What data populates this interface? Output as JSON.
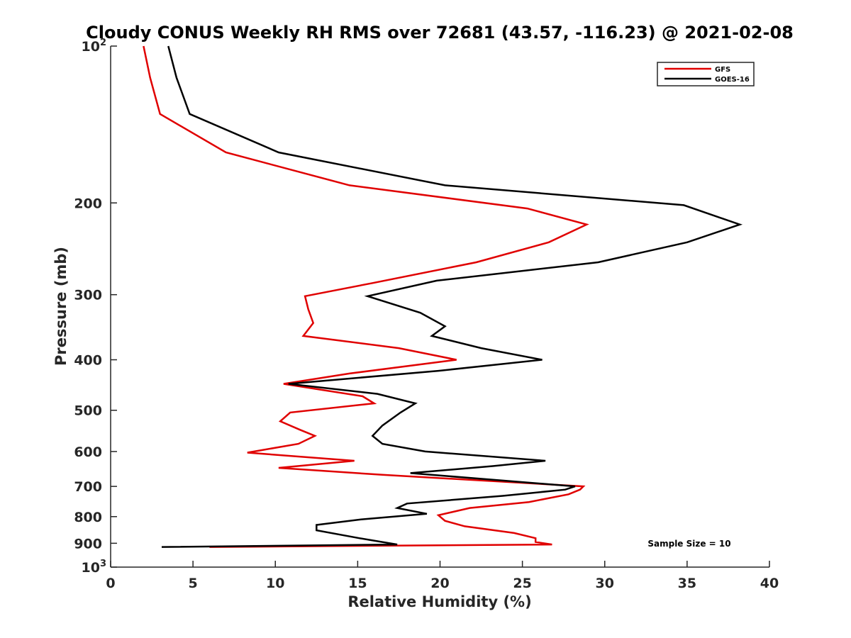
{
  "chart_data": {
    "type": "line",
    "title": "Cloudy CONUS Weekly RH RMS over 72681 (43.57, -116.23) @ 2021-02-08",
    "xlabel": "Relative Humidity (%)",
    "ylabel": "Pressure (mb)",
    "xlim": [
      0,
      40
    ],
    "ylim": [
      100,
      1000
    ],
    "y_scale": "log",
    "y_reversed": true,
    "grid": false,
    "legend_position": "top-right",
    "x_ticks": [
      "0",
      "5",
      "10",
      "15",
      "20",
      "25",
      "30",
      "35",
      "40"
    ],
    "y_ticks": [
      {
        "value": 100,
        "base": "10",
        "exp": "2"
      },
      {
        "value": 200,
        "label": "200"
      },
      {
        "value": 300,
        "label": "300"
      },
      {
        "value": 400,
        "label": "400"
      },
      {
        "value": 500,
        "label": "500"
      },
      {
        "value": 600,
        "label": "600"
      },
      {
        "value": 700,
        "label": "700"
      },
      {
        "value": 800,
        "label": "800"
      },
      {
        "value": 900,
        "label": "900"
      },
      {
        "value": 1000,
        "base": "10",
        "exp": "3"
      }
    ],
    "annotation": "Sample Size = 10",
    "series": [
      {
        "name": "GFS",
        "color": "#e00000",
        "points": [
          [
            2.0,
            100
          ],
          [
            2.4,
            115
          ],
          [
            3.0,
            135
          ],
          [
            7.0,
            160
          ],
          [
            14.5,
            185
          ],
          [
            25.3,
            205
          ],
          [
            28.9,
            220
          ],
          [
            26.6,
            238
          ],
          [
            22.2,
            260
          ],
          [
            15.9,
            285
          ],
          [
            11.8,
            302
          ],
          [
            12.0,
            320
          ],
          [
            12.3,
            340
          ],
          [
            11.7,
            360
          ],
          [
            17.5,
            380
          ],
          [
            21.0,
            400
          ],
          [
            14.5,
            425
          ],
          [
            10.5,
            445
          ],
          [
            15.3,
            470
          ],
          [
            16.0,
            485
          ],
          [
            10.9,
            505
          ],
          [
            10.3,
            525
          ],
          [
            11.5,
            545
          ],
          [
            12.4,
            560
          ],
          [
            11.4,
            580
          ],
          [
            8.3,
            603
          ],
          [
            14.8,
            625
          ],
          [
            10.2,
            645
          ],
          [
            16.5,
            665
          ],
          [
            28.7,
            700
          ],
          [
            28.5,
            710
          ],
          [
            27.8,
            725
          ],
          [
            25.4,
            750
          ],
          [
            21.8,
            770
          ],
          [
            19.9,
            795
          ],
          [
            20.3,
            815
          ],
          [
            21.5,
            835
          ],
          [
            24.5,
            860
          ],
          [
            25.8,
            880
          ],
          [
            25.8,
            895
          ],
          [
            26.8,
            905
          ],
          [
            6.0,
            915
          ]
        ]
      },
      {
        "name": "GOES-16",
        "color": "#000000",
        "points": [
          [
            3.5,
            100
          ],
          [
            4.0,
            115
          ],
          [
            4.8,
            135
          ],
          [
            10.2,
            160
          ],
          [
            20.3,
            185
          ],
          [
            34.8,
            202
          ],
          [
            38.2,
            220
          ],
          [
            35.0,
            238
          ],
          [
            29.6,
            260
          ],
          [
            19.8,
            282
          ],
          [
            15.6,
            302
          ],
          [
            18.8,
            325
          ],
          [
            20.3,
            345
          ],
          [
            19.5,
            360
          ],
          [
            22.5,
            380
          ],
          [
            26.2,
            400
          ],
          [
            19.9,
            420
          ],
          [
            10.8,
            445
          ],
          [
            16.2,
            465
          ],
          [
            18.5,
            485
          ],
          [
            17.6,
            505
          ],
          [
            16.5,
            535
          ],
          [
            15.9,
            560
          ],
          [
            16.5,
            580
          ],
          [
            19.1,
            600
          ],
          [
            26.4,
            625
          ],
          [
            23.2,
            640
          ],
          [
            18.2,
            660
          ],
          [
            28.2,
            700
          ],
          [
            27.6,
            710
          ],
          [
            23.8,
            730
          ],
          [
            18.0,
            755
          ],
          [
            17.4,
            770
          ],
          [
            19.2,
            790
          ],
          [
            15.2,
            810
          ],
          [
            12.5,
            830
          ],
          [
            12.5,
            850
          ],
          [
            15.1,
            880
          ],
          [
            17.4,
            905
          ],
          [
            3.1,
            915
          ]
        ]
      }
    ]
  }
}
